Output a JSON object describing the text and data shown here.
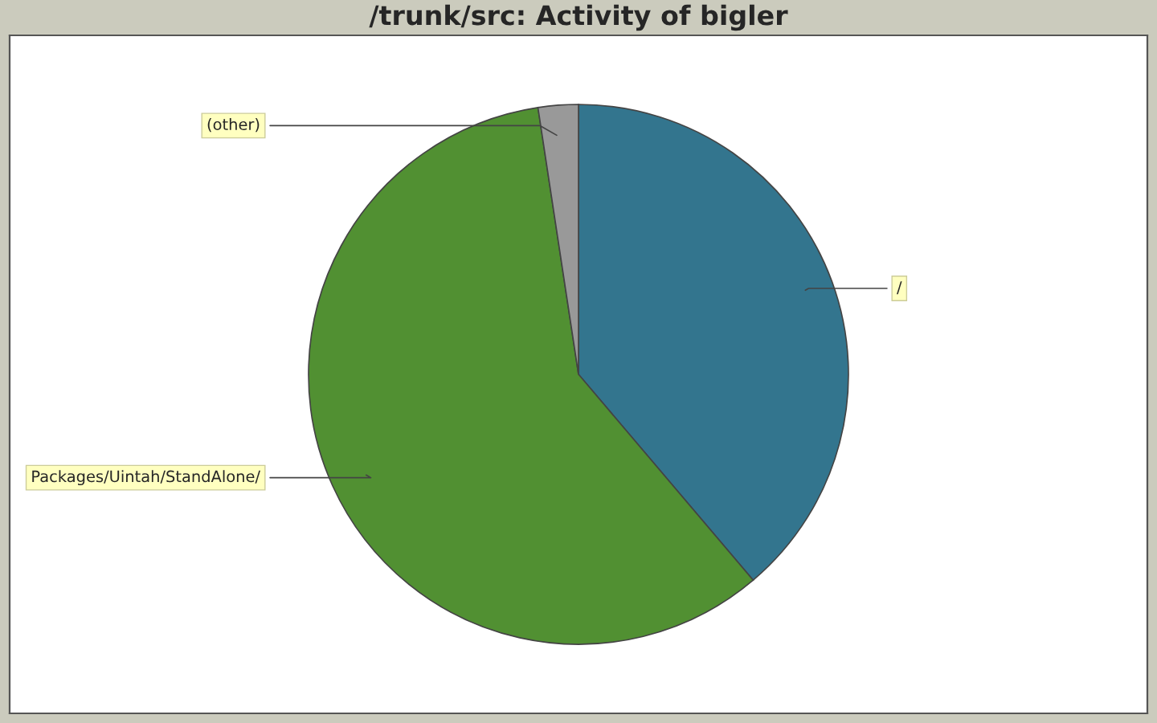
{
  "chart_data": {
    "type": "pie",
    "title": "/trunk/src: Activity of bigler",
    "categories": [
      "/",
      "Packages/Uintah/StandAlone/",
      "(other)"
    ],
    "values": [
      38.8,
      58.8,
      2.4
    ],
    "colors": [
      "#33758e",
      "#519032",
      "#999999"
    ],
    "legend": false
  }
}
